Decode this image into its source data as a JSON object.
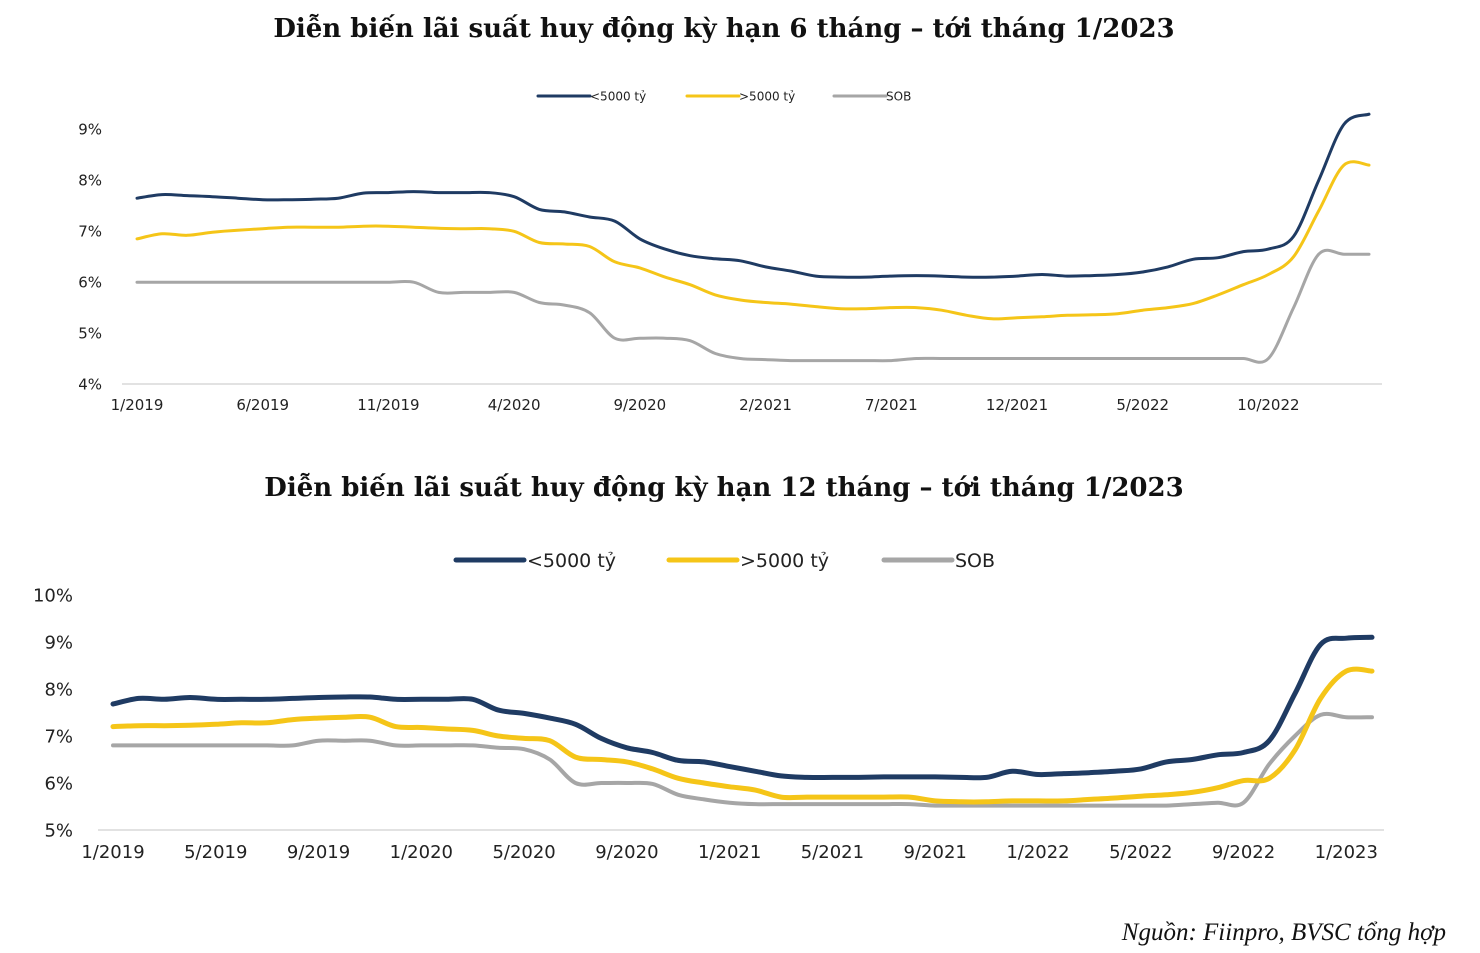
{
  "source_note": "Nguồn: Fiinpro, BVSC tổng hợp",
  "colors": {
    "small_banks": "#1f3b63",
    "large_banks": "#f5c518",
    "sob": "#a6a6a6",
    "axis": "#d9d9d9"
  },
  "chart_data": [
    {
      "type": "line",
      "title": "Diễn biến lãi suất huy động kỳ hạn 6 tháng – tới tháng 1/2023",
      "xlabel": "",
      "ylabel": "",
      "x_tick_labels": [
        "1/2019",
        "6/2019",
        "11/2019",
        "4/2020",
        "9/2020",
        "2/2021",
        "7/2021",
        "12/2021",
        "5/2022",
        "10/2022"
      ],
      "x_tick_index": [
        0,
        5,
        10,
        15,
        20,
        25,
        30,
        35,
        40,
        45
      ],
      "y_tick_labels": [
        "4%",
        "5%",
        "6%",
        "7%",
        "8%",
        "9%"
      ],
      "ylim": [
        4,
        9.5
      ],
      "grid": false,
      "legend_placement": "top-center",
      "series": [
        {
          "name": "<5000 tỷ",
          "values": [
            7.65,
            7.72,
            7.7,
            7.68,
            7.65,
            7.62,
            7.62,
            7.63,
            7.65,
            7.75,
            7.76,
            7.78,
            7.76,
            7.76,
            7.76,
            7.68,
            7.43,
            7.38,
            7.28,
            7.2,
            6.85,
            6.65,
            6.52,
            6.46,
            6.42,
            6.3,
            6.22,
            6.12,
            6.1,
            6.1,
            6.12,
            6.13,
            6.12,
            6.1,
            6.1,
            6.12,
            6.15,
            6.12,
            6.13,
            6.15,
            6.2,
            6.3,
            6.45,
            6.48,
            6.6,
            6.65,
            6.9,
            8.0,
            9.1,
            9.3
          ]
        },
        {
          "name": ">5000 tỷ",
          "values": [
            6.85,
            6.95,
            6.92,
            6.98,
            7.02,
            7.05,
            7.08,
            7.08,
            7.08,
            7.1,
            7.1,
            7.08,
            7.06,
            7.05,
            7.05,
            7.0,
            6.78,
            6.75,
            6.7,
            6.4,
            6.28,
            6.1,
            5.95,
            5.75,
            5.65,
            5.6,
            5.57,
            5.52,
            5.48,
            5.48,
            5.5,
            5.5,
            5.45,
            5.35,
            5.28,
            5.3,
            5.32,
            5.35,
            5.36,
            5.38,
            5.45,
            5.5,
            5.58,
            5.75,
            5.95,
            6.15,
            6.5,
            7.4,
            8.3,
            8.3
          ]
        },
        {
          "name": "SOB",
          "values": [
            6.0,
            6.0,
            6.0,
            6.0,
            6.0,
            6.0,
            6.0,
            6.0,
            6.0,
            6.0,
            6.0,
            6.0,
            5.8,
            5.8,
            5.8,
            5.8,
            5.6,
            5.55,
            5.4,
            4.9,
            4.9,
            4.9,
            4.85,
            4.6,
            4.5,
            4.48,
            4.46,
            4.46,
            4.46,
            4.46,
            4.46,
            4.5,
            4.5,
            4.5,
            4.5,
            4.5,
            4.5,
            4.5,
            4.5,
            4.5,
            4.5,
            4.5,
            4.5,
            4.5,
            4.5,
            4.5,
            5.5,
            6.55,
            6.55,
            6.55
          ]
        }
      ]
    },
    {
      "type": "line",
      "title": "Diễn biến lãi suất huy động kỳ hạn 12 tháng – tới tháng 1/2023",
      "xlabel": "",
      "ylabel": "",
      "x_tick_labels": [
        "1/2019",
        "5/2019",
        "9/2019",
        "1/2020",
        "5/2020",
        "9/2020",
        "1/2021",
        "5/2021",
        "9/2021",
        "1/2022",
        "5/2022",
        "9/2022",
        "1/2023"
      ],
      "x_tick_index": [
        0,
        4,
        8,
        12,
        16,
        20,
        24,
        28,
        32,
        36,
        40,
        44,
        48
      ],
      "y_tick_labels": [
        "5%",
        "6%",
        "7%",
        "8%",
        "9%",
        "10%"
      ],
      "ylim": [
        5,
        10
      ],
      "grid": false,
      "legend_placement": "top-center",
      "series": [
        {
          "name": "<5000 tỷ",
          "values": [
            7.68,
            7.8,
            7.78,
            7.82,
            7.78,
            7.78,
            7.78,
            7.8,
            7.82,
            7.83,
            7.83,
            7.78,
            7.78,
            7.78,
            7.78,
            7.55,
            7.48,
            7.38,
            7.25,
            6.95,
            6.75,
            6.65,
            6.48,
            6.45,
            6.35,
            6.25,
            6.15,
            6.12,
            6.12,
            6.12,
            6.13,
            6.13,
            6.13,
            6.12,
            6.12,
            6.25,
            6.18,
            6.2,
            6.22,
            6.25,
            6.3,
            6.45,
            6.5,
            6.6,
            6.65,
            6.9,
            7.9,
            8.95,
            9.08,
            9.1
          ]
        },
        {
          "name": ">5000 tỷ",
          "values": [
            7.2,
            7.22,
            7.22,
            7.23,
            7.25,
            7.28,
            7.28,
            7.35,
            7.38,
            7.4,
            7.4,
            7.2,
            7.18,
            7.15,
            7.12,
            7.0,
            6.95,
            6.9,
            6.55,
            6.5,
            6.45,
            6.3,
            6.1,
            6.0,
            5.92,
            5.85,
            5.7,
            5.7,
            5.7,
            5.7,
            5.7,
            5.7,
            5.62,
            5.6,
            5.6,
            5.62,
            5.62,
            5.62,
            5.65,
            5.68,
            5.72,
            5.75,
            5.8,
            5.9,
            6.05,
            6.1,
            6.7,
            7.8,
            8.38,
            8.38
          ]
        },
        {
          "name": "SOB",
          "values": [
            6.8,
            6.8,
            6.8,
            6.8,
            6.8,
            6.8,
            6.8,
            6.8,
            6.9,
            6.9,
            6.9,
            6.8,
            6.8,
            6.8,
            6.8,
            6.75,
            6.72,
            6.5,
            6.0,
            6.0,
            6.0,
            5.98,
            5.75,
            5.65,
            5.58,
            5.55,
            5.55,
            5.55,
            5.55,
            5.55,
            5.55,
            5.55,
            5.52,
            5.52,
            5.52,
            5.52,
            5.52,
            5.52,
            5.52,
            5.52,
            5.52,
            5.52,
            5.55,
            5.58,
            5.58,
            6.4,
            7.0,
            7.45,
            7.4,
            7.4
          ]
        }
      ]
    }
  ]
}
